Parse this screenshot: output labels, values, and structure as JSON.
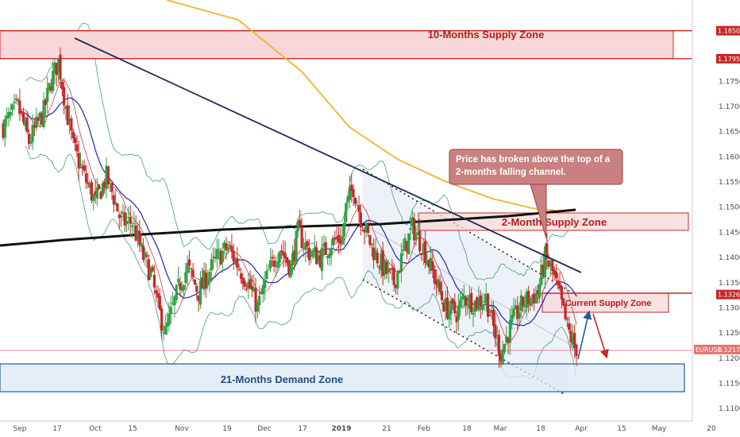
{
  "chart_data": {
    "type": "candlestick",
    "symbol": "EURUSD",
    "x_ticks": [
      "Sep",
      "17",
      "Oct",
      "15",
      "Nov",
      "19",
      "Dec",
      "17",
      "2019",
      "21",
      "Feb",
      "18",
      "Mar",
      "18",
      "Apr",
      "15",
      "May",
      "20"
    ],
    "y_ticks": [
      "1.18506",
      "1.17950",
      "1.17500",
      "1.17000",
      "1.16500",
      "1.16000",
      "1.15500",
      "1.15000",
      "1.14500",
      "1.14000",
      "1.13500",
      "1.13265",
      "1.13000",
      "1.12500",
      "1.12172",
      "1.12000",
      "1.11500",
      "1.11000"
    ],
    "y_range": [
      1.1075,
      1.188
    ],
    "highlighted_prices": {
      "upper_zone_top": "1.18506",
      "upper_zone_bottom": "1.17950",
      "current_supply": "1.13265",
      "last_price": "1.12172"
    },
    "last_price_label": "EURUSD",
    "zones": [
      {
        "name": "10-Months Supply Zone",
        "top": 1.18506,
        "bottom": 1.1795,
        "color": "#d32f2f"
      },
      {
        "name": "2-Month Supply Zone",
        "top": 1.1483,
        "bottom": 1.1452,
        "color": "#d32f2f"
      },
      {
        "name": "Current Supply Zone",
        "top": 1.133,
        "bottom": 1.1295,
        "color": "#d32f2f"
      },
      {
        "name": "21-Months Demand Zone",
        "top": 1.1193,
        "bottom": 1.114,
        "color": "#1f5c99"
      }
    ],
    "annotation": {
      "line1": "Price has broken above the top of a",
      "line2": "2-months falling channel."
    },
    "colors": {
      "bull": "#2ea043",
      "bear": "#c62828",
      "ma_fast": "#2222aa",
      "ma_mid": "#b03030",
      "ma_slow": "#f0b429",
      "ma_black": "#111111",
      "trendline": "#1a2a5a",
      "bands": "#5aa88a"
    }
  }
}
